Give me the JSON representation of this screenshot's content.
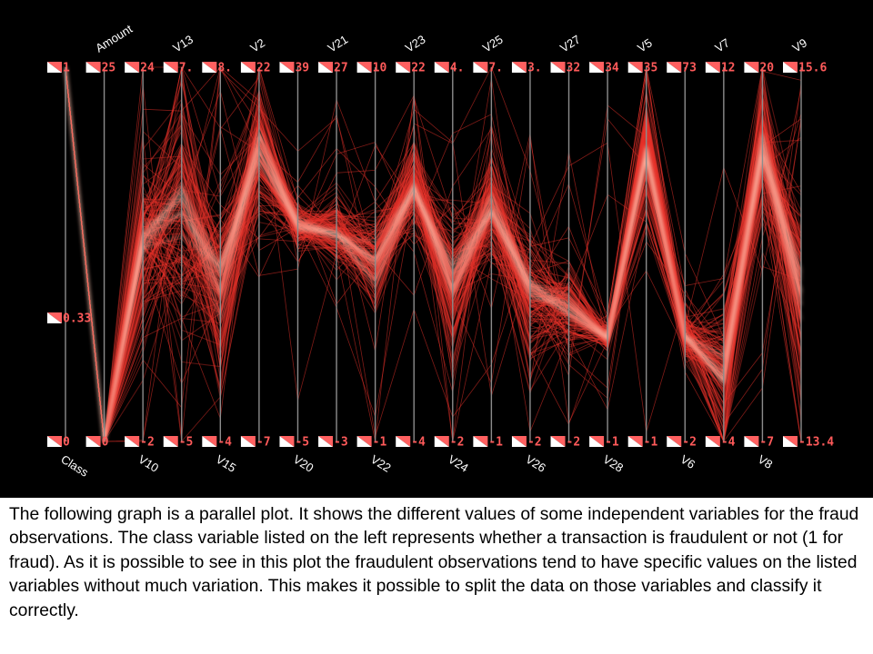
{
  "chart_data": {
    "type": "parallel-coordinates",
    "title": "",
    "axes": [
      {
        "name": "Class",
        "label_pos": "bottom",
        "top_tick": "1",
        "bottom_tick": "0",
        "mid_tick": "0.33",
        "mid_value": 0.33
      },
      {
        "name": "Amount",
        "label_pos": "top",
        "top_tick": "25",
        "bottom_tick": "0"
      },
      {
        "name": "V10",
        "label_pos": "bottom",
        "top_tick": "24",
        "bottom_tick": "-2"
      },
      {
        "name": "V13",
        "label_pos": "top",
        "top_tick": "7.",
        "bottom_tick": "-5"
      },
      {
        "name": "V15",
        "label_pos": "bottom",
        "top_tick": "8.",
        "bottom_tick": "-4"
      },
      {
        "name": "V2",
        "label_pos": "top",
        "top_tick": "22",
        "bottom_tick": "-7"
      },
      {
        "name": "V20",
        "label_pos": "bottom",
        "top_tick": "39",
        "bottom_tick": "-5"
      },
      {
        "name": "V21",
        "label_pos": "top",
        "top_tick": "27",
        "bottom_tick": "-3"
      },
      {
        "name": "V22",
        "label_pos": "bottom",
        "top_tick": "10",
        "bottom_tick": "-1"
      },
      {
        "name": "V23",
        "label_pos": "top",
        "top_tick": "22",
        "bottom_tick": "-4"
      },
      {
        "name": "V24",
        "label_pos": "bottom",
        "top_tick": "4.",
        "bottom_tick": "-2"
      },
      {
        "name": "V25",
        "label_pos": "top",
        "top_tick": "7.",
        "bottom_tick": "-1"
      },
      {
        "name": "V26",
        "label_pos": "bottom",
        "top_tick": "3.",
        "bottom_tick": "-2"
      },
      {
        "name": "V27",
        "label_pos": "top",
        "top_tick": "32",
        "bottom_tick": "-2"
      },
      {
        "name": "V28",
        "label_pos": "bottom",
        "top_tick": "34",
        "bottom_tick": "-1"
      },
      {
        "name": "V5",
        "label_pos": "top",
        "top_tick": "35",
        "bottom_tick": "-1"
      },
      {
        "name": "V6",
        "label_pos": "bottom",
        "top_tick": "73",
        "bottom_tick": "-2"
      },
      {
        "name": "V7",
        "label_pos": "top",
        "top_tick": "12",
        "bottom_tick": "-4"
      },
      {
        "name": "V8",
        "label_pos": "bottom",
        "top_tick": "20",
        "bottom_tick": "-7"
      },
      {
        "name": "V9",
        "label_pos": "top",
        "top_tick": "15.6",
        "bottom_tick": "-13.4"
      }
    ],
    "normalized_profile_note": "values per axis are fraction of axis range (0 = bottom, 1 = top)",
    "profile_mean": [
      1.0,
      0.0,
      0.52,
      0.62,
      0.42,
      0.78,
      0.58,
      0.56,
      0.48,
      0.68,
      0.42,
      0.62,
      0.4,
      0.36,
      0.28,
      0.78,
      0.28,
      0.18,
      0.78,
      0.4
    ],
    "profile_spread": [
      0.0,
      0.0,
      0.14,
      0.16,
      0.14,
      0.1,
      0.03,
      0.05,
      0.08,
      0.06,
      0.1,
      0.08,
      0.1,
      0.06,
      0.02,
      0.08,
      0.03,
      0.1,
      0.12,
      0.14
    ],
    "series": [
      {
        "name": "",
        "color": "#e8322a"
      }
    ],
    "highlight_color": "#ffc8b4",
    "tick_marker_color": "#ff6060",
    "axis_color": "#8c8c8c",
    "grid": false
  },
  "caption": "The following graph is a parallel plot. It shows the different values of some independent variables for the fraud observations. The class variable listed on the left represents whether a transaction is fraudulent or not (1 for fraud). As it is possible to see in this plot the fraudulent observations tend to have specific values on the listed variables without much variation. This makes it possible to split the data on those variables and classify it correctly."
}
